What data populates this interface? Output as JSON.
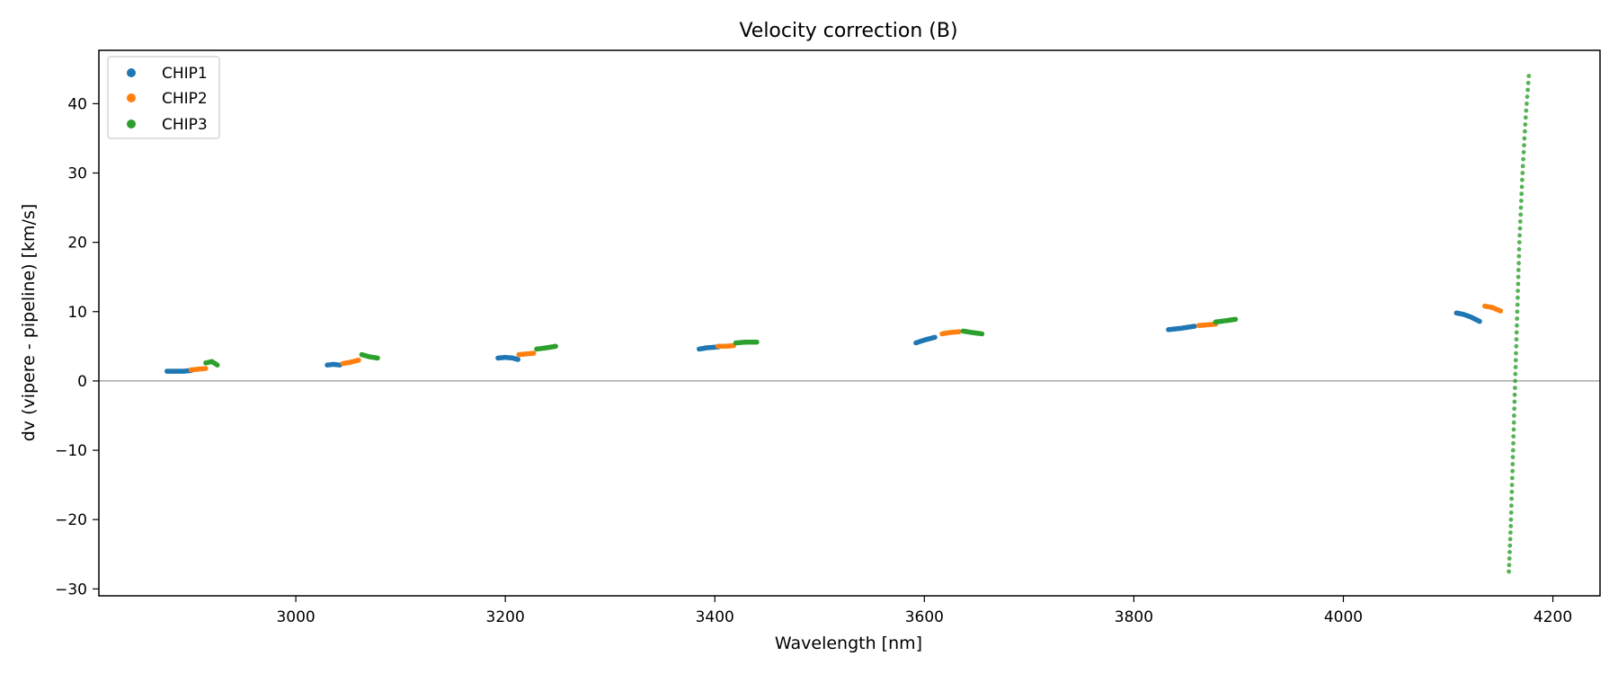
{
  "chart_data": {
    "type": "scatter",
    "title": "Velocity correction (B)",
    "xlabel": "Wavelength [nm]",
    "ylabel": "dv (vipere - pipeline) [km/s]",
    "xlim": [
      2812,
      4245
    ],
    "ylim": [
      -31,
      47.7
    ],
    "xticks": [
      3000,
      3200,
      3400,
      3600,
      3800,
      4000,
      4200
    ],
    "yticks": [
      -30,
      -20,
      -10,
      0,
      10,
      20,
      30,
      40
    ],
    "grid": false,
    "zero_line": true,
    "legend": {
      "placement": "top-left"
    },
    "series": [
      {
        "name": "CHIP1",
        "color": "#1f77b4",
        "segments": [
          [
            [
              2877,
              1.4
            ],
            [
              2885,
              1.4
            ],
            [
              2893,
              1.4
            ],
            [
              2900,
              1.5
            ]
          ],
          [
            [
              3030,
              2.3
            ],
            [
              3036,
              2.4
            ],
            [
              3042,
              2.3
            ]
          ],
          [
            [
              3193,
              3.3
            ],
            [
              3200,
              3.4
            ],
            [
              3207,
              3.3
            ],
            [
              3212,
              3.1
            ]
          ],
          [
            [
              3385,
              4.6
            ],
            [
              3393,
              4.8
            ],
            [
              3403,
              4.9
            ]
          ],
          [
            [
              3592,
              5.5
            ],
            [
              3600,
              5.9
            ],
            [
              3610,
              6.3
            ]
          ],
          [
            [
              3833,
              7.4
            ],
            [
              3845,
              7.6
            ],
            [
              3858,
              7.9
            ]
          ],
          [
            [
              4108,
              9.8
            ],
            [
              4115,
              9.6
            ],
            [
              4122,
              9.2
            ],
            [
              4130,
              8.6
            ]
          ]
        ]
      },
      {
        "name": "CHIP2",
        "color": "#ff7f0e",
        "segments": [
          [
            [
              2900,
              1.6
            ],
            [
              2907,
              1.7
            ],
            [
              2914,
              1.8
            ]
          ],
          [
            [
              3045,
              2.5
            ],
            [
              3052,
              2.7
            ],
            [
              3060,
              3.0
            ]
          ],
          [
            [
              3213,
              3.8
            ],
            [
              3220,
              3.9
            ],
            [
              3227,
              4.0
            ]
          ],
          [
            [
              3403,
              5.0
            ],
            [
              3410,
              5.0
            ],
            [
              3418,
              5.1
            ]
          ],
          [
            [
              3617,
              6.8
            ],
            [
              3625,
              7.0
            ],
            [
              3633,
              7.1
            ]
          ],
          [
            [
              3862,
              8.0
            ],
            [
              3870,
              8.1
            ],
            [
              3878,
              8.2
            ]
          ],
          [
            [
              4135,
              10.8
            ],
            [
              4142,
              10.6
            ],
            [
              4150,
              10.1
            ]
          ]
        ]
      },
      {
        "name": "CHIP3",
        "color": "#2ca02c",
        "segments": [
          [
            [
              2914,
              2.6
            ],
            [
              2920,
              2.8
            ],
            [
              2925,
              2.3
            ]
          ],
          [
            [
              3063,
              3.8
            ],
            [
              3070,
              3.5
            ],
            [
              3078,
              3.3
            ]
          ],
          [
            [
              3230,
              4.6
            ],
            [
              3240,
              4.8
            ],
            [
              3248,
              5.0
            ]
          ],
          [
            [
              3420,
              5.5
            ],
            [
              3430,
              5.6
            ],
            [
              3440,
              5.6
            ]
          ],
          [
            [
              3637,
              7.2
            ],
            [
              3645,
              7.0
            ],
            [
              3655,
              6.8
            ]
          ],
          [
            [
              3878,
              8.5
            ],
            [
              3888,
              8.7
            ],
            [
              3897,
              8.9
            ]
          ],
          [
            [
              4158,
              -27.5
            ],
            [
              4160,
              -20
            ],
            [
              4162,
              -10
            ],
            [
              4164,
              0
            ],
            [
              4166,
              10
            ],
            [
              4168,
              20
            ],
            [
              4171,
              30
            ],
            [
              4174,
              38
            ],
            [
              4177,
              44
            ]
          ]
        ]
      }
    ]
  }
}
